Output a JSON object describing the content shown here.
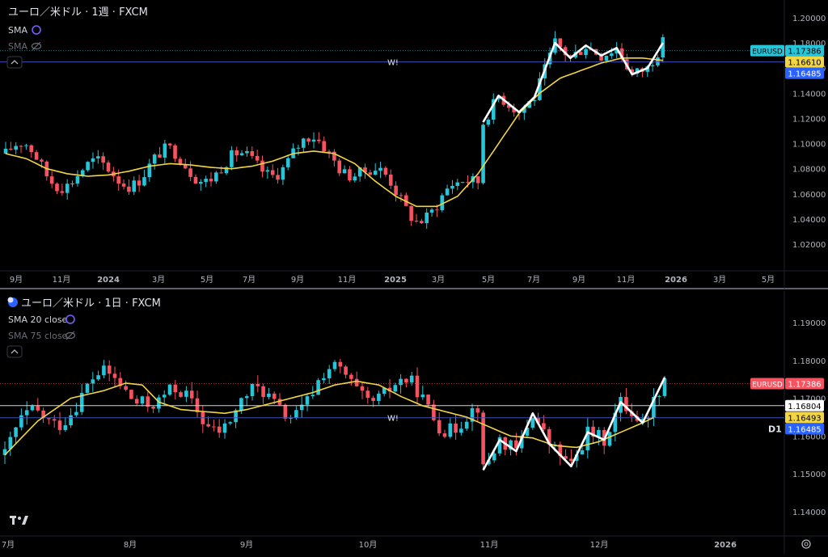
{
  "chart_data": [
    {
      "type": "candlestick",
      "title": "ユーロ／米ドル · 1週 · FXCM",
      "indicators": [
        {
          "label": "SMA",
          "visible": true,
          "color": "#f2d544"
        },
        {
          "label": "SMA",
          "visible": false
        }
      ],
      "ylim": [
        1.0,
        1.21
      ],
      "yticks": [
        "1.20000",
        "1.18000",
        "1.16000",
        "1.14000",
        "1.12000",
        "1.10000",
        "1.08000",
        "1.06000",
        "1.04000",
        "1.02000"
      ],
      "ytick_values": [
        1.2,
        1.18,
        1.16,
        1.14,
        1.12,
        1.1,
        1.08,
        1.06,
        1.04,
        1.02
      ],
      "xticks": [
        "9月",
        "11月",
        "2024",
        "3月",
        "5月",
        "7月",
        "9月",
        "11月",
        "2025",
        "3月",
        "5月",
        "7月",
        "9月",
        "11月",
        "2026",
        "3月",
        "5月"
      ],
      "price_labels": [
        {
          "name": "EURUSD",
          "value": "1.17386",
          "bg": "#26c6da"
        },
        {
          "name": "",
          "value": "1.16610",
          "bg": "#f2d544"
        },
        {
          "name": "",
          "value": "1.16485",
          "bg": "#2962ff"
        }
      ],
      "hline_label": "W!",
      "hline_value": 1.16485,
      "sma_value": 1.1661,
      "last_value": 1.17386,
      "series_points": [
        [
          0,
          1.092
        ],
        [
          4,
          1.088
        ],
        [
          8,
          1.08
        ],
        [
          12,
          1.076
        ],
        [
          16,
          1.074
        ],
        [
          20,
          1.075
        ],
        [
          24,
          1.078
        ],
        [
          28,
          1.082
        ],
        [
          32,
          1.084
        ],
        [
          36,
          1.083
        ],
        [
          40,
          1.081
        ],
        [
          44,
          1.08
        ],
        [
          48,
          1.082
        ],
        [
          52,
          1.086
        ],
        [
          56,
          1.092
        ],
        [
          60,
          1.094
        ],
        [
          64,
          1.092
        ],
        [
          68,
          1.084
        ],
        [
          72,
          1.07
        ],
        [
          76,
          1.058
        ],
        [
          80,
          1.05
        ],
        [
          84,
          1.05
        ],
        [
          88,
          1.058
        ],
        [
          92,
          1.076
        ],
        [
          96,
          1.1
        ],
        [
          100,
          1.124
        ],
        [
          104,
          1.14
        ],
        [
          108,
          1.152
        ],
        [
          112,
          1.158
        ],
        [
          116,
          1.164
        ],
        [
          120,
          1.168
        ],
        [
          124,
          1.168
        ],
        [
          128,
          1.1661
        ]
      ],
      "zigzag": [
        [
          93,
          1.117
        ],
        [
          96,
          1.138
        ],
        [
          100,
          1.125
        ],
        [
          103,
          1.137
        ],
        [
          107,
          1.18
        ],
        [
          110,
          1.168
        ],
        [
          113,
          1.178
        ],
        [
          116,
          1.17
        ],
        [
          119,
          1.176
        ],
        [
          122,
          1.155
        ],
        [
          125,
          1.16
        ],
        [
          128,
          1.18
        ]
      ]
    },
    {
      "type": "candlestick",
      "title": "ユーロ／米ドル · 1日 · FXCM",
      "indicators": [
        {
          "label": "SMA 20 close",
          "visible": true,
          "color": "#f2d544"
        },
        {
          "label": "SMA 75 close",
          "visible": false
        }
      ],
      "ylim": [
        1.135,
        1.2
      ],
      "yticks": [
        "1.19000",
        "1.18000",
        "1.17000",
        "1.16000",
        "1.15000",
        "1.14000"
      ],
      "ytick_values": [
        1.19,
        1.18,
        1.17,
        1.16,
        1.15,
        1.14
      ],
      "xticks": [
        "7月",
        "8月",
        "9月",
        "10月",
        "11月",
        "12月",
        "2026"
      ],
      "price_labels": [
        {
          "name": "EURUSD",
          "value": "1.17386",
          "bg": "#f7525f"
        },
        {
          "name": "",
          "value": "1.16804",
          "bg": "#ffffff"
        },
        {
          "name": "",
          "value": "1.16493",
          "bg": "#f2d544"
        },
        {
          "name": "D1",
          "value": "1.16485",
          "bg": "#2962ff"
        }
      ],
      "hline_label": "W!",
      "hline_value": 1.16485,
      "hline2_value": 1.16804,
      "sma_value": 1.16493,
      "last_value": 1.17386,
      "series_points": [
        [
          0,
          1.155
        ],
        [
          6,
          1.164
        ],
        [
          12,
          1.17
        ],
        [
          18,
          1.172
        ],
        [
          22,
          1.174
        ],
        [
          25,
          1.1735
        ],
        [
          28,
          1.169
        ],
        [
          32,
          1.167
        ],
        [
          36,
          1.1665
        ],
        [
          40,
          1.166
        ],
        [
          44,
          1.167
        ],
        [
          48,
          1.1685
        ],
        [
          52,
          1.17
        ],
        [
          56,
          1.1715
        ],
        [
          60,
          1.1735
        ],
        [
          64,
          1.1745
        ],
        [
          68,
          1.1735
        ],
        [
          72,
          1.1705
        ],
        [
          76,
          1.168
        ],
        [
          80,
          1.1665
        ],
        [
          84,
          1.165
        ],
        [
          88,
          1.1625
        ],
        [
          92,
          1.16
        ],
        [
          96,
          1.1595
        ],
        [
          100,
          1.1575
        ],
        [
          104,
          1.157
        ],
        [
          108,
          1.1585
        ],
        [
          112,
          1.161
        ],
        [
          116,
          1.1635
        ],
        [
          118,
          1.1649
        ]
      ],
      "zigzag": [
        [
          87,
          1.151
        ],
        [
          90,
          1.159
        ],
        [
          93,
          1.156
        ],
        [
          96,
          1.166
        ],
        [
          99,
          1.158
        ],
        [
          103,
          1.152
        ],
        [
          106,
          1.161
        ],
        [
          109,
          1.159
        ],
        [
          112,
          1.169
        ],
        [
          116,
          1.1635
        ],
        [
          120,
          1.1755
        ]
      ]
    }
  ]
}
